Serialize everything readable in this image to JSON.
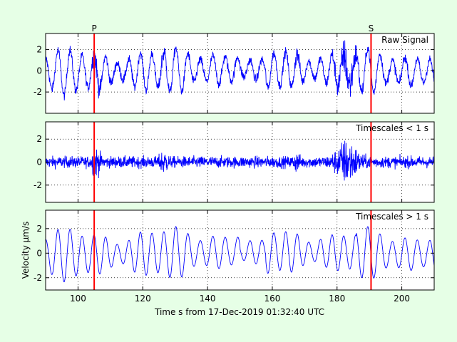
{
  "figure": {
    "background": "#e6ffe6",
    "axes_background": "#ffffff",
    "signal_color": "#0000ff",
    "marker_color": "#ff0000",
    "xlabel": "Time s from 17-Dec-2019 01:32:40 UTC",
    "ylabel": "Velocity μm/s",
    "xlim": [
      90,
      210
    ],
    "x_ticks": [
      100,
      120,
      140,
      160,
      180,
      200
    ],
    "grid": true
  },
  "chart_data": [
    {
      "type": "line",
      "title": "Raw Signal",
      "ylim": [
        -4,
        3.5
      ],
      "y_ticks": [
        -2,
        0,
        2
      ],
      "show_x_tick_labels": false,
      "series": [
        {
          "kind": "raw",
          "x_range": [
            90,
            210
          ]
        }
      ],
      "markers": [
        {
          "label": "P",
          "x": 105
        },
        {
          "label": "S",
          "x": 190.5
        }
      ]
    },
    {
      "type": "line",
      "title": "Timescales < 1 s",
      "ylim": [
        -3.5,
        3.5
      ],
      "y_ticks": [
        -2,
        0,
        2
      ],
      "show_x_tick_labels": false,
      "series": [
        {
          "kind": "high",
          "x_range": [
            90,
            210
          ]
        }
      ],
      "markers": [
        {
          "label": "",
          "x": 105
        },
        {
          "label": "",
          "x": 190.5
        }
      ]
    },
    {
      "type": "line",
      "title": "Timescales > 1 s",
      "ylim": [
        -3,
        3.5
      ],
      "y_ticks": [
        -2,
        0,
        2
      ],
      "show_x_tick_labels": true,
      "series": [
        {
          "kind": "low",
          "x_range": [
            90,
            210
          ]
        }
      ],
      "markers": [
        {
          "label": "",
          "x": 105
        },
        {
          "label": "",
          "x": 190.5
        }
      ]
    }
  ]
}
